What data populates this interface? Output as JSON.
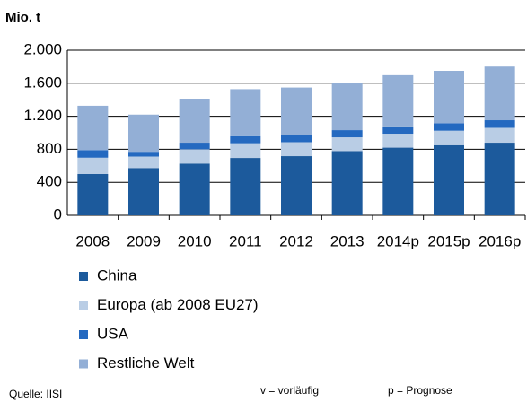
{
  "chart_data": {
    "type": "stacked_bar",
    "title": "Mio. t",
    "categories": [
      "2008",
      "2009",
      "2010",
      "2011",
      "2012",
      "2013",
      "2014p",
      "2015p",
      "2016p"
    ],
    "series": [
      {
        "name": "China",
        "color": "#1c5a9c",
        "values": [
          500,
          573,
          627,
          695,
          717,
          779,
          820,
          850,
          880
        ]
      },
      {
        "name": "Europa (ab 2008 EU27)",
        "color": "#b9cde5",
        "values": [
          198,
          139,
          173,
          178,
          169,
          166,
          169,
          175,
          180
        ]
      },
      {
        "name": "USA",
        "color": "#2469c0",
        "values": [
          92,
          58,
          80,
          86,
          89,
          87,
          88,
          90,
          92
        ]
      },
      {
        "name": "Restliche Welt",
        "color": "#93afd6",
        "values": [
          537,
          450,
          533,
          569,
          573,
          575,
          620,
          635,
          650
        ]
      }
    ],
    "ylim": [
      0,
      2000
    ],
    "yticks": [
      0,
      400,
      800,
      {
        "value": 1200,
        "label": "1.200"
      },
      {
        "value": 1600,
        "label": "1.600"
      },
      {
        "value": 2000,
        "label": "2.000"
      }
    ],
    "legend": "bottom",
    "source": "Quelle: IISI",
    "notes": [
      "v = vorläufig",
      "p = Prognose"
    ]
  }
}
